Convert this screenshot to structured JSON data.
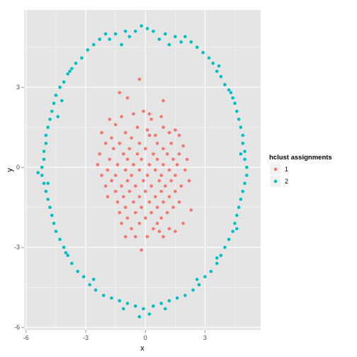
{
  "chart_data": {
    "type": "scatter",
    "xlabel": "x",
    "ylabel": "y",
    "xlim": [
      -6.1,
      5.8
    ],
    "ylim": [
      -6.1,
      5.9
    ],
    "x_ticks": [
      -6,
      -3,
      0,
      3
    ],
    "x_tick_labels": [
      "-6",
      "-3",
      "0",
      "3"
    ],
    "y_ticks": [
      -6,
      -3,
      0,
      3
    ],
    "y_tick_labels": [
      "-6",
      "-3",
      "0",
      "3"
    ],
    "grid": true,
    "background": "#E5E5E5",
    "legend": {
      "title": "hclust assignments",
      "placement": "right",
      "entries": [
        {
          "label": "1",
          "color": "#F8766D"
        },
        {
          "label": "2",
          "color": "#00BFC4"
        }
      ]
    },
    "series": [
      {
        "name": "1",
        "color": "#F8766D",
        "points": [
          [
            -0.3,
            3.3
          ],
          [
            -1.3,
            2.8
          ],
          [
            -0.9,
            2.6
          ],
          [
            0.9,
            2.5
          ],
          [
            -0.1,
            2.1
          ],
          [
            0.2,
            2.0
          ],
          [
            -1.8,
            1.8
          ],
          [
            -1.2,
            1.9
          ],
          [
            -0.6,
            2.0
          ],
          [
            0.3,
            1.8
          ],
          [
            0.8,
            1.9
          ],
          [
            -1.5,
            1.6
          ],
          [
            -0.4,
            1.5
          ],
          [
            0.1,
            1.4
          ],
          [
            0.9,
            1.5
          ],
          [
            1.5,
            1.4
          ],
          [
            -2.2,
            1.3
          ],
          [
            -1.0,
            1.3
          ],
          [
            0.5,
            1.2
          ],
          [
            1.2,
            1.3
          ],
          [
            -1.7,
            1.1
          ],
          [
            -0.7,
            1.1
          ],
          [
            0.2,
            1.2
          ],
          [
            1.7,
            1.2
          ],
          [
            -2.0,
            0.9
          ],
          [
            -1.3,
            0.9
          ],
          [
            -0.3,
            0.9
          ],
          [
            0.6,
            0.9
          ],
          [
            1.3,
            0.9
          ],
          [
            1.9,
            0.8
          ],
          [
            -1.6,
            0.7
          ],
          [
            -0.8,
            0.7
          ],
          [
            0.0,
            0.7
          ],
          [
            0.9,
            0.7
          ],
          [
            -2.3,
            0.5
          ],
          [
            -1.1,
            0.5
          ],
          [
            -0.4,
            0.5
          ],
          [
            0.4,
            0.5
          ],
          [
            1.1,
            0.5
          ],
          [
            1.7,
            0.5
          ],
          [
            -1.8,
            0.3
          ],
          [
            -0.9,
            0.3
          ],
          [
            -0.2,
            0.3
          ],
          [
            0.6,
            0.3
          ],
          [
            1.4,
            0.3
          ],
          [
            2.1,
            0.3
          ],
          [
            -2.4,
            0.1
          ],
          [
            -1.4,
            0.1
          ],
          [
            -0.6,
            0.1
          ],
          [
            0.2,
            0.1
          ],
          [
            0.9,
            0.1
          ],
          [
            1.6,
            0.1
          ],
          [
            -1.9,
            -0.1
          ],
          [
            -1.0,
            -0.1
          ],
          [
            -0.3,
            -0.1
          ],
          [
            0.5,
            -0.1
          ],
          [
            1.2,
            -0.1
          ],
          [
            2.0,
            -0.1
          ],
          [
            -2.2,
            -0.3
          ],
          [
            -1.5,
            -0.3
          ],
          [
            -0.7,
            -0.3
          ],
          [
            0.1,
            -0.3
          ],
          [
            0.8,
            -0.3
          ],
          [
            1.5,
            -0.3
          ],
          [
            -1.7,
            -0.5
          ],
          [
            -0.9,
            -0.5
          ],
          [
            -0.1,
            -0.5
          ],
          [
            0.7,
            -0.5
          ],
          [
            1.3,
            -0.5
          ],
          [
            2.2,
            -0.5
          ],
          [
            -2.0,
            -0.7
          ],
          [
            -1.2,
            -0.7
          ],
          [
            -0.5,
            -0.7
          ],
          [
            0.3,
            -0.7
          ],
          [
            1.0,
            -0.7
          ],
          [
            1.8,
            -0.7
          ],
          [
            -1.5,
            -0.9
          ],
          [
            -0.8,
            -0.9
          ],
          [
            0.0,
            -0.9
          ],
          [
            0.8,
            -0.9
          ],
          [
            1.5,
            -0.9
          ],
          [
            -1.9,
            -1.1
          ],
          [
            -1.1,
            -1.1
          ],
          [
            -0.3,
            -1.1
          ],
          [
            0.5,
            -1.1
          ],
          [
            1.2,
            -1.1
          ],
          [
            -1.4,
            -1.3
          ],
          [
            -0.6,
            -1.3
          ],
          [
            0.2,
            -1.3
          ],
          [
            0.9,
            -1.3
          ],
          [
            1.7,
            -1.3
          ],
          [
            -1.0,
            -1.5
          ],
          [
            -0.2,
            -1.5
          ],
          [
            0.6,
            -1.5
          ],
          [
            1.4,
            -1.5
          ],
          [
            -1.3,
            -1.7
          ],
          [
            -0.5,
            -1.7
          ],
          [
            0.3,
            -1.7
          ],
          [
            1.1,
            -1.7
          ],
          [
            2.3,
            -1.6
          ],
          [
            -0.9,
            -1.9
          ],
          [
            0.0,
            -1.9
          ],
          [
            0.8,
            -1.9
          ],
          [
            -1.2,
            -2.1
          ],
          [
            -0.3,
            -2.1
          ],
          [
            0.6,
            -2.1
          ],
          [
            1.9,
            -2.1
          ],
          [
            -0.7,
            -2.3
          ],
          [
            0.4,
            -2.3
          ],
          [
            1.2,
            -2.3
          ],
          [
            -1.0,
            -2.6
          ],
          [
            0.1,
            -2.6
          ],
          [
            0.9,
            -2.6
          ],
          [
            0.7,
            -2.4
          ],
          [
            -0.5,
            -2.6
          ],
          [
            1.5,
            -2.4
          ],
          [
            -0.2,
            -3.1
          ]
        ]
      },
      {
        "name": "2",
        "color": "#00BFC4",
        "points": [
          [
            -0.2,
            5.3
          ],
          [
            0.1,
            5.2
          ],
          [
            -0.5,
            5.1
          ],
          [
            0.4,
            5.1
          ],
          [
            -1.0,
            5.1
          ],
          [
            1.0,
            5.0
          ],
          [
            -1.5,
            5.0
          ],
          [
            1.5,
            4.9
          ],
          [
            -2.0,
            5.0
          ],
          [
            2.0,
            4.9
          ],
          [
            -2.3,
            4.8
          ],
          [
            2.3,
            4.7
          ],
          [
            -0.8,
            4.9
          ],
          [
            0.7,
            4.8
          ],
          [
            -1.8,
            4.8
          ],
          [
            1.8,
            4.7
          ],
          [
            -2.6,
            4.6
          ],
          [
            2.6,
            4.5
          ],
          [
            -2.9,
            4.4
          ],
          [
            2.9,
            4.3
          ],
          [
            -3.2,
            4.1
          ],
          [
            3.2,
            4.1
          ],
          [
            -3.5,
            3.9
          ],
          [
            3.4,
            3.9
          ],
          [
            -3.7,
            3.7
          ],
          [
            3.6,
            3.6
          ],
          [
            -3.9,
            3.5
          ],
          [
            3.8,
            3.4
          ],
          [
            -4.1,
            3.2
          ],
          [
            4.0,
            3.1
          ],
          [
            -4.3,
            3.0
          ],
          [
            4.2,
            2.9
          ],
          [
            -4.5,
            2.7
          ],
          [
            4.4,
            2.6
          ],
          [
            -4.6,
            2.4
          ],
          [
            4.5,
            2.4
          ],
          [
            -4.7,
            2.1
          ],
          [
            4.6,
            2.1
          ],
          [
            -4.8,
            1.8
          ],
          [
            4.7,
            1.8
          ],
          [
            -4.9,
            1.5
          ],
          [
            4.8,
            1.5
          ],
          [
            -5.0,
            1.2
          ],
          [
            4.9,
            1.2
          ],
          [
            -5.0,
            0.9
          ],
          [
            4.9,
            0.9
          ],
          [
            -5.1,
            0.6
          ],
          [
            5.0,
            0.6
          ],
          [
            -5.1,
            0.3
          ],
          [
            5.0,
            0.3
          ],
          [
            -5.2,
            0.0
          ],
          [
            5.1,
            0.0
          ],
          [
            -5.2,
            -0.3
          ],
          [
            5.1,
            -0.3
          ],
          [
            -5.1,
            -0.6
          ],
          [
            5.0,
            -0.6
          ],
          [
            -5.0,
            -0.9
          ],
          [
            4.9,
            -0.9
          ],
          [
            -4.9,
            -1.2
          ],
          [
            4.8,
            -1.2
          ],
          [
            -4.8,
            -1.5
          ],
          [
            4.7,
            -1.5
          ],
          [
            -4.7,
            -1.8
          ],
          [
            4.6,
            -1.8
          ],
          [
            -4.6,
            -2.1
          ],
          [
            4.5,
            -2.1
          ],
          [
            -4.5,
            -2.4
          ],
          [
            4.4,
            -2.4
          ],
          [
            -4.3,
            -2.7
          ],
          [
            4.2,
            -2.7
          ],
          [
            -4.1,
            -3.0
          ],
          [
            4.0,
            -3.0
          ],
          [
            -3.9,
            -3.3
          ],
          [
            3.8,
            -3.3
          ],
          [
            -3.7,
            -3.6
          ],
          [
            3.6,
            -3.6
          ],
          [
            -3.4,
            -3.9
          ],
          [
            3.3,
            -3.9
          ],
          [
            -3.1,
            -4.1
          ],
          [
            3.0,
            -4.1
          ],
          [
            -2.8,
            -4.4
          ],
          [
            2.7,
            -4.4
          ],
          [
            -2.5,
            -4.6
          ],
          [
            2.4,
            -4.6
          ],
          [
            -2.1,
            -4.8
          ],
          [
            2.0,
            -4.8
          ],
          [
            -1.7,
            -4.9
          ],
          [
            1.6,
            -4.9
          ],
          [
            -1.3,
            -5.0
          ],
          [
            1.2,
            -5.0
          ],
          [
            -0.9,
            -5.1
          ],
          [
            0.8,
            -5.1
          ],
          [
            -0.5,
            -5.2
          ],
          [
            0.4,
            -5.2
          ],
          [
            -0.1,
            -5.3
          ],
          [
            0.2,
            -5.5
          ],
          [
            -0.3,
            -5.6
          ],
          [
            1.0,
            -5.3
          ],
          [
            -1.1,
            -5.3
          ],
          [
            -4.4,
            1.9
          ],
          [
            -4.2,
            2.5
          ],
          [
            4.3,
            2.8
          ],
          [
            4.8,
            0.5
          ],
          [
            -4.9,
            -0.6
          ],
          [
            4.6,
            -2.3
          ],
          [
            -4.0,
            -3.2
          ],
          [
            3.6,
            -3.4
          ],
          [
            -2.6,
            -4.2
          ],
          [
            2.6,
            -4.2
          ],
          [
            -3.8,
            3.6
          ],
          [
            3.7,
            3.8
          ],
          [
            -1.2,
            4.6
          ],
          [
            1.2,
            4.6
          ],
          [
            -5.4,
            -0.2
          ]
        ]
      }
    ]
  }
}
